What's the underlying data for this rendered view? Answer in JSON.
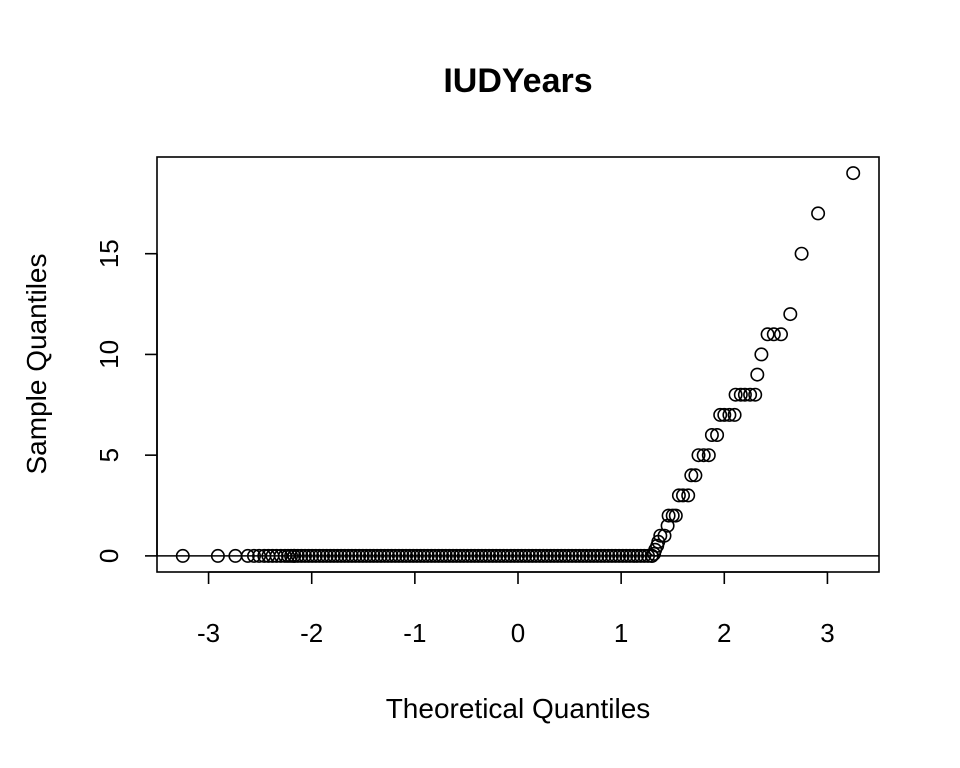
{
  "chart_data": {
    "type": "scatter",
    "title": "IUDYears",
    "xlabel": "Theoretical Quantiles",
    "ylabel": "Sample Quantiles",
    "xlim": [
      -3.5,
      3.5
    ],
    "ylim": [
      -0.8,
      19.8
    ],
    "x_ticks": [
      -3,
      -2,
      -1,
      0,
      1,
      2,
      3
    ],
    "y_ticks": [
      0,
      5,
      10,
      15
    ],
    "reference_line": {
      "y": 0
    },
    "points": [
      [
        -3.25,
        0
      ],
      [
        -2.91,
        0
      ],
      [
        -2.74,
        0
      ],
      [
        -2.62,
        0
      ],
      [
        -2.56,
        0
      ],
      [
        -2.51,
        0
      ],
      [
        -2.46,
        0
      ],
      [
        -2.42,
        0
      ],
      [
        -2.38,
        0
      ],
      [
        -2.34,
        0
      ],
      [
        -2.3,
        0
      ],
      [
        -2.26,
        0
      ],
      [
        -2.23,
        0
      ],
      [
        -2.2,
        0
      ],
      [
        -2.17,
        0
      ],
      [
        1.3,
        0
      ],
      [
        1.32,
        0.1
      ],
      [
        1.33,
        0.3
      ],
      [
        1.35,
        0.5
      ],
      [
        1.36,
        0.7
      ],
      [
        1.38,
        1
      ],
      [
        1.42,
        1
      ],
      [
        1.45,
        1.5
      ],
      [
        1.46,
        2
      ],
      [
        1.5,
        2
      ],
      [
        1.53,
        2
      ],
      [
        1.56,
        3
      ],
      [
        1.6,
        3
      ],
      [
        1.65,
        3
      ],
      [
        1.68,
        4
      ],
      [
        1.72,
        4
      ],
      [
        1.75,
        5
      ],
      [
        1.8,
        5
      ],
      [
        1.85,
        5
      ],
      [
        1.88,
        6
      ],
      [
        1.93,
        6
      ],
      [
        1.96,
        7
      ],
      [
        2.0,
        7
      ],
      [
        2.05,
        7
      ],
      [
        2.1,
        7
      ],
      [
        2.11,
        8
      ],
      [
        2.16,
        8
      ],
      [
        2.2,
        8
      ],
      [
        2.25,
        8
      ],
      [
        2.3,
        8
      ],
      [
        2.32,
        9
      ],
      [
        2.36,
        10
      ],
      [
        2.42,
        11
      ],
      [
        2.48,
        11
      ],
      [
        2.55,
        11
      ],
      [
        2.64,
        12
      ],
      [
        2.75,
        15
      ],
      [
        2.91,
        17
      ],
      [
        3.25,
        19
      ]
    ],
    "dense_segment": {
      "x_from": -2.17,
      "x_to": 1.3,
      "y": 0
    },
    "grid": false,
    "legend": "none"
  }
}
